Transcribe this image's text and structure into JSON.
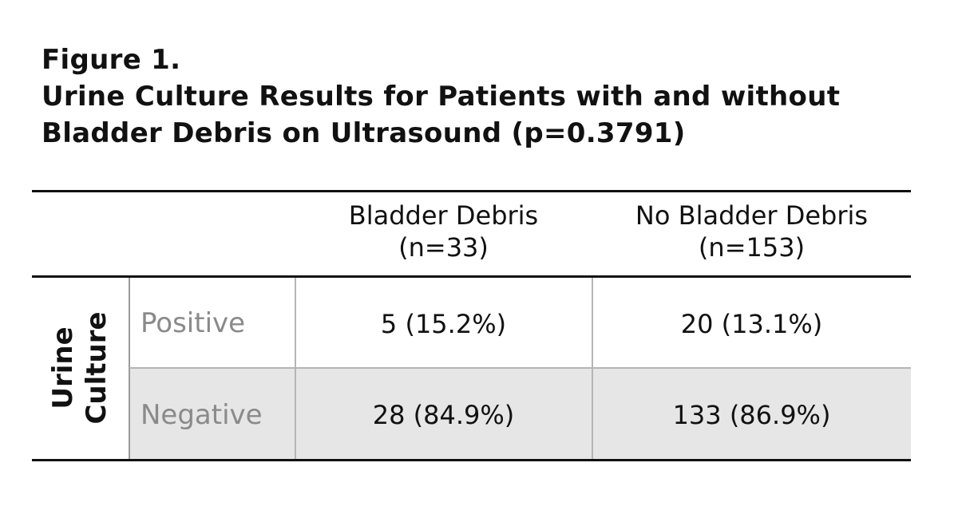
{
  "figure": {
    "label": "Figure 1.",
    "title_line1": "Urine Culture Results for Patients with and without",
    "title_line2": "Bladder Debris on Ultrasound (p=0.3791)"
  },
  "chart_data": {
    "type": "table",
    "row_group_label": [
      "Urine",
      "Culture"
    ],
    "columns": [
      {
        "label": "Bladder Debris",
        "n": "(n=33)"
      },
      {
        "label": "No Bladder Debris",
        "n": "(n=153)"
      }
    ],
    "rows": [
      {
        "label": "Positive",
        "cells": [
          "5 (15.2%)",
          "20 (13.1%)"
        ]
      },
      {
        "label": "Negative",
        "cells": [
          "28 (84.9%)",
          "133 (86.9%)"
        ]
      }
    ],
    "values": {
      "bladder_debris": {
        "positive": 5,
        "positive_pct": 15.2,
        "negative": 28,
        "negative_pct": 84.9,
        "n": 33
      },
      "no_bladder_debris": {
        "positive": 20,
        "positive_pct": 13.1,
        "negative": 133,
        "negative_pct": 86.9,
        "n": 153
      }
    },
    "p_value": 0.3791
  },
  "colors": {
    "text": "#111111",
    "row_label": "#8a8a8a",
    "shaded_row": "#e6e6e6",
    "grid": "#b5b5b5"
  }
}
